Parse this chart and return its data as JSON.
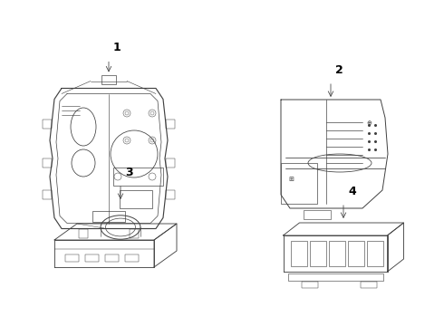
{
  "background_color": "#ffffff",
  "line_color": "#404040",
  "line_width": 0.7,
  "figsize": [
    4.9,
    3.6
  ],
  "dpi": 100
}
